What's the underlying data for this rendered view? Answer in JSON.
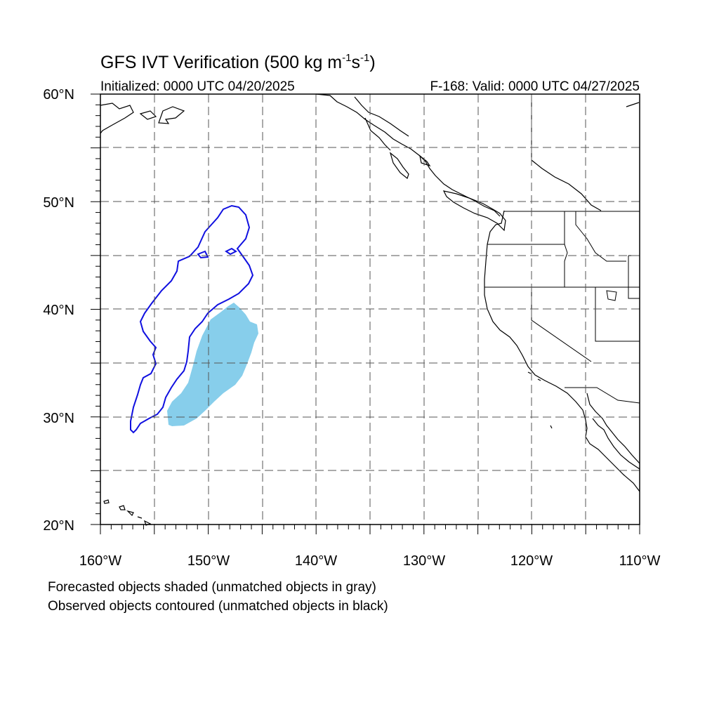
{
  "map": {
    "title_main": "GFS IVT Verification (500 kg m",
    "title_sup1": "-1",
    "title_mid": "s",
    "title_sup2": "-1",
    "title_end": ")",
    "initialized": "Initialized: 0000 UTC 04/20/2025",
    "valid": "F-168: Valid: 0000 UTC 04/27/2025",
    "lat_labels": [
      "60°N",
      "50°N",
      "40°N",
      "30°N",
      "20°N"
    ],
    "lon_labels": [
      "160°W",
      "150°W",
      "140°W",
      "130°W",
      "120°W",
      "110°W"
    ],
    "lat_range": [
      20,
      60
    ],
    "lon_range": [
      -160,
      -110
    ],
    "grid": "dashed every 5 degrees",
    "colors": {
      "forecast_fill": "#87ceeb",
      "observed_contour": "#1010e0",
      "coastline": "#000000",
      "grid": "#555555"
    }
  },
  "notes": {
    "line1": "Forecasted objects shaded (unmatched objects in gray)",
    "line2": "Observed objects contoured (unmatched objects in black)"
  }
}
